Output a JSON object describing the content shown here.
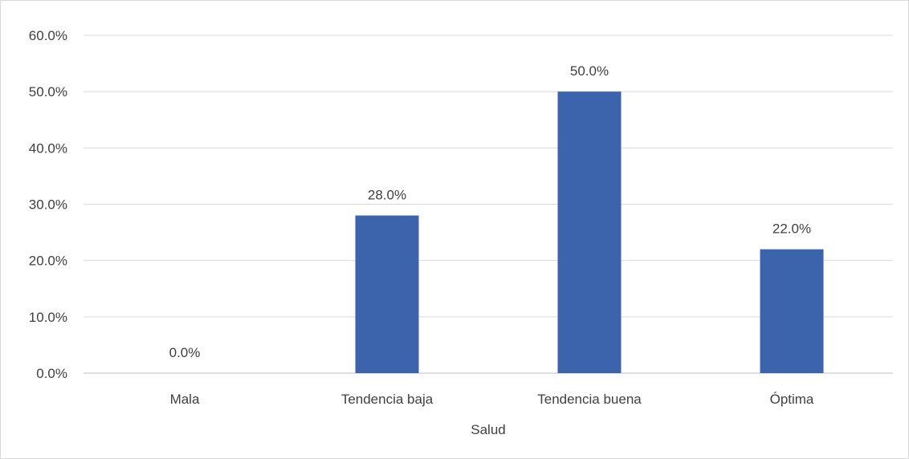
{
  "chart_data": {
    "type": "bar",
    "categories": [
      "Mala",
      "Tendencia baja",
      "Tendencia buena",
      "Óptima"
    ],
    "values": [
      0.0,
      28.0,
      50.0,
      22.0
    ],
    "data_labels": [
      "0.0%",
      "28.0%",
      "50.0%",
      "22.0%"
    ],
    "title": "",
    "xlabel": "Salud",
    "ylabel": "",
    "ylim": [
      0,
      60
    ],
    "yticks": [
      0,
      10,
      20,
      30,
      40,
      50,
      60
    ],
    "ytick_labels": [
      "0.0%",
      "10.0%",
      "20.0%",
      "30.0%",
      "40.0%",
      "50.0%",
      "60.0%"
    ],
    "grid": true,
    "legend": "none",
    "colors": {
      "bar": "#3b64ad",
      "grid": "#d9d9d9",
      "text": "#404040"
    }
  }
}
